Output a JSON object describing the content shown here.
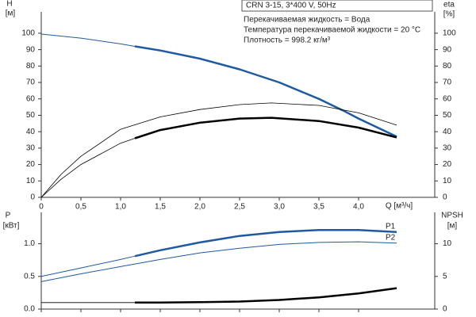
{
  "chart_data": [
    {
      "type": "line",
      "title": "CRN 3-15, 3*400 V, 50Hz",
      "annotations": [
        "Перекачиваемая жидкость = Вода",
        "Температура перекачиваемой жидкости = 20 °C",
        "Плотность = 998.2 кг/м³"
      ],
      "ylabel": "H",
      "yunit": "[м]",
      "y2label": "eta",
      "y2unit": "[%]",
      "xlabel": "Q [м³/ч]",
      "xlim": [
        0,
        4.96
      ],
      "xticks": [
        0,
        {
          "value": 0.5,
          "label": "0,5"
        },
        {
          "value": 1,
          "label": "1,0"
        },
        {
          "value": 1.5,
          "label": "1,5"
        },
        {
          "value": 2,
          "label": "2,0"
        },
        {
          "value": 2.5,
          "label": "2,5"
        },
        {
          "value": 3,
          "label": "3,0"
        },
        {
          "value": 3.5,
          "label": "3,5"
        },
        {
          "value": 4,
          "label": "4,0"
        }
      ],
      "ylim": [
        0,
        113
      ],
      "yticks": [
        0,
        10,
        20,
        30,
        40,
        50,
        60,
        70,
        80,
        90,
        100
      ],
      "y2lim": [
        0,
        113
      ],
      "y2ticks": [
        0,
        10,
        20,
        30,
        40,
        50,
        60,
        70,
        80,
        90,
        100
      ],
      "series": [
        {
          "color": "#1f5aa0",
          "width": 1,
          "x": [
            0,
            0.5,
            1,
            1.18
          ],
          "values": [
            99.5,
            97,
            93.5,
            92
          ]
        },
        {
          "color": "#1f5aa0",
          "width": 2.5,
          "x": [
            1.18,
            1.5,
            2,
            2.5,
            3,
            3.5,
            3.8,
            4,
            4.48
          ],
          "values": [
            92,
            89.5,
            84.5,
            78,
            70,
            60,
            53,
            48,
            37
          ]
        },
        {
          "axis": "y2",
          "color": "#000000",
          "width": 0.8,
          "x": [
            0,
            0.25,
            0.5,
            1,
            1.5,
            2,
            2.5,
            2.9,
            3.5,
            4,
            4.48
          ],
          "values": [
            0,
            14,
            25,
            41.5,
            49,
            53.5,
            56.5,
            57.5,
            56,
            51.5,
            44
          ]
        },
        {
          "axis": "y2",
          "color": "#000000",
          "width": 0.8,
          "x": [
            0,
            0.25,
            0.5,
            1,
            1.18
          ],
          "values": [
            0,
            11,
            20,
            33,
            36
          ]
        },
        {
          "axis": "y2",
          "color": "#000000",
          "width": 2.5,
          "x": [
            1.18,
            1.5,
            2,
            2.5,
            2.9,
            3.5,
            4,
            4.48
          ],
          "values": [
            36,
            41,
            45.5,
            48,
            48.5,
            46.5,
            42.5,
            36.5
          ]
        }
      ]
    },
    {
      "type": "line",
      "ylabel": "P",
      "yunit": "[кВт]",
      "y2label": "NPSH",
      "y2unit": "[м]",
      "xlim": [
        0,
        4.96
      ],
      "ylim": [
        0,
        1.48
      ],
      "yticks": [
        {
          "value": 0,
          "label": "0.0"
        },
        0.5,
        {
          "value": 1,
          "label": "1.0"
        }
      ],
      "y2lim": [
        0,
        14.8
      ],
      "y2ticks": [
        0,
        5,
        10
      ],
      "series": [
        {
          "color": "#1f5aa0",
          "width": 1,
          "x": [
            0,
            0.5,
            1,
            1.18
          ],
          "values": [
            0.5,
            0.63,
            0.76,
            0.81
          ]
        },
        {
          "name": "P1",
          "color": "#1f5aa0",
          "width": 2.5,
          "x": [
            1.18,
            1.5,
            2,
            2.5,
            3,
            3.5,
            4,
            4.48
          ],
          "values": [
            0.81,
            0.9,
            1.02,
            1.12,
            1.18,
            1.21,
            1.21,
            1.18
          ]
        },
        {
          "name": "P2",
          "color": "#1f5aa0",
          "width": 1,
          "x": [
            0,
            0.5,
            1,
            1.5,
            2,
            2.5,
            3,
            3.5,
            4,
            4.48
          ],
          "values": [
            0.42,
            0.54,
            0.65,
            0.76,
            0.86,
            0.93,
            0.99,
            1.02,
            1.03,
            1.01
          ]
        },
        {
          "axis": "y2",
          "color": "#000000",
          "width": 0.8,
          "x": [
            0,
            0.5,
            1,
            1.18
          ],
          "values": [
            1,
            1,
            1,
            1
          ]
        },
        {
          "axis": "y2",
          "color": "#000000",
          "width": 2.5,
          "x": [
            1.18,
            1.5,
            2,
            2.5,
            3,
            3.5,
            4,
            4.48
          ],
          "values": [
            1,
            1,
            1.05,
            1.15,
            1.4,
            1.8,
            2.4,
            3.2
          ]
        }
      ]
    }
  ]
}
